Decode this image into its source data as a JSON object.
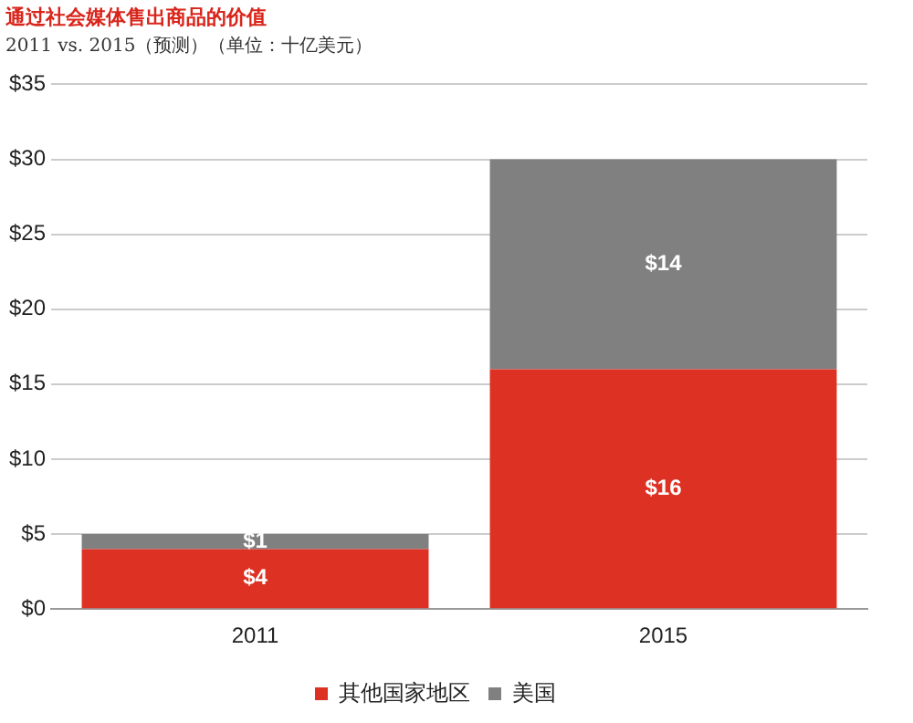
{
  "chart_data": {
    "type": "bar",
    "title": "通过社会媒体售出商品的价值",
    "subtitle": "2011 vs. 2015（预测）（单位：十亿美元）",
    "categories": [
      "2011",
      "2015"
    ],
    "stacked": true,
    "series": [
      {
        "name": "其他国家地区",
        "color": "#dd3124",
        "values": [
          4,
          16
        ],
        "value_labels": [
          "$4",
          "$16"
        ]
      },
      {
        "name": "美国",
        "color": "#808080",
        "values": [
          1,
          14
        ],
        "value_labels": [
          "$1",
          "$14"
        ]
      }
    ],
    "ylim": [
      0,
      35
    ],
    "yticks": [
      {
        "value": 0,
        "label": "$0"
      },
      {
        "value": 5,
        "label": "$5"
      },
      {
        "value": 10,
        "label": "$10"
      },
      {
        "value": 15,
        "label": "$15"
      },
      {
        "value": 20,
        "label": "$20"
      },
      {
        "value": 25,
        "label": "$25"
      },
      {
        "value": 30,
        "label": "$30"
      },
      {
        "value": 35,
        "label": "$35"
      }
    ],
    "grid": "y",
    "legend": "bottom"
  }
}
